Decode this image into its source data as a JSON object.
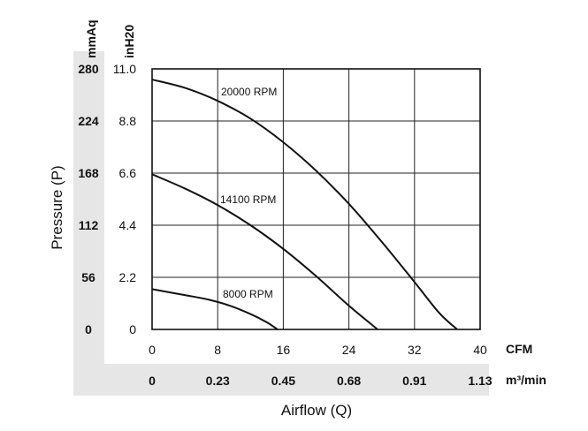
{
  "chart_data": {
    "type": "line",
    "xlabel": "Airflow (Q)",
    "ylabel": "Pressure (P)",
    "x_unit_primary": "CFM",
    "x_unit_secondary": "m³/min",
    "y_unit_primary": "inH20",
    "y_unit_secondary": "mmAq",
    "x_ticks": [
      "0",
      "8",
      "16",
      "24",
      "32",
      "40"
    ],
    "x_ticks_secondary": [
      "0",
      "0.23",
      "0.45",
      "0.68",
      "0.91",
      "1.13"
    ],
    "y_ticks": [
      "0",
      "2.2",
      "4.4",
      "6.6",
      "8.8",
      "11.0"
    ],
    "y_ticks_secondary": [
      "0",
      "56",
      "112",
      "168",
      "224",
      "280"
    ],
    "xlim": [
      0,
      40
    ],
    "ylim": [
      0,
      11
    ],
    "grid": true,
    "series": [
      {
        "name": "20000 RPM",
        "x": [
          0,
          4,
          8,
          12,
          16,
          20,
          24,
          28,
          32,
          35,
          37.2
        ],
        "y": [
          10.55,
          10.2,
          9.65,
          8.9,
          7.9,
          6.7,
          5.3,
          3.7,
          2.0,
          0.7,
          0
        ]
      },
      {
        "name": "14100 RPM",
        "x": [
          0,
          4,
          8,
          12,
          16,
          20,
          24,
          27.5
        ],
        "y": [
          6.55,
          5.95,
          5.25,
          4.4,
          3.4,
          2.25,
          1.0,
          0
        ]
      },
      {
        "name": "8000 RPM",
        "x": [
          0,
          4,
          7,
          9.5,
          12,
          14,
          15.3
        ],
        "y": [
          1.7,
          1.45,
          1.25,
          1.0,
          0.65,
          0.3,
          0
        ]
      }
    ]
  }
}
